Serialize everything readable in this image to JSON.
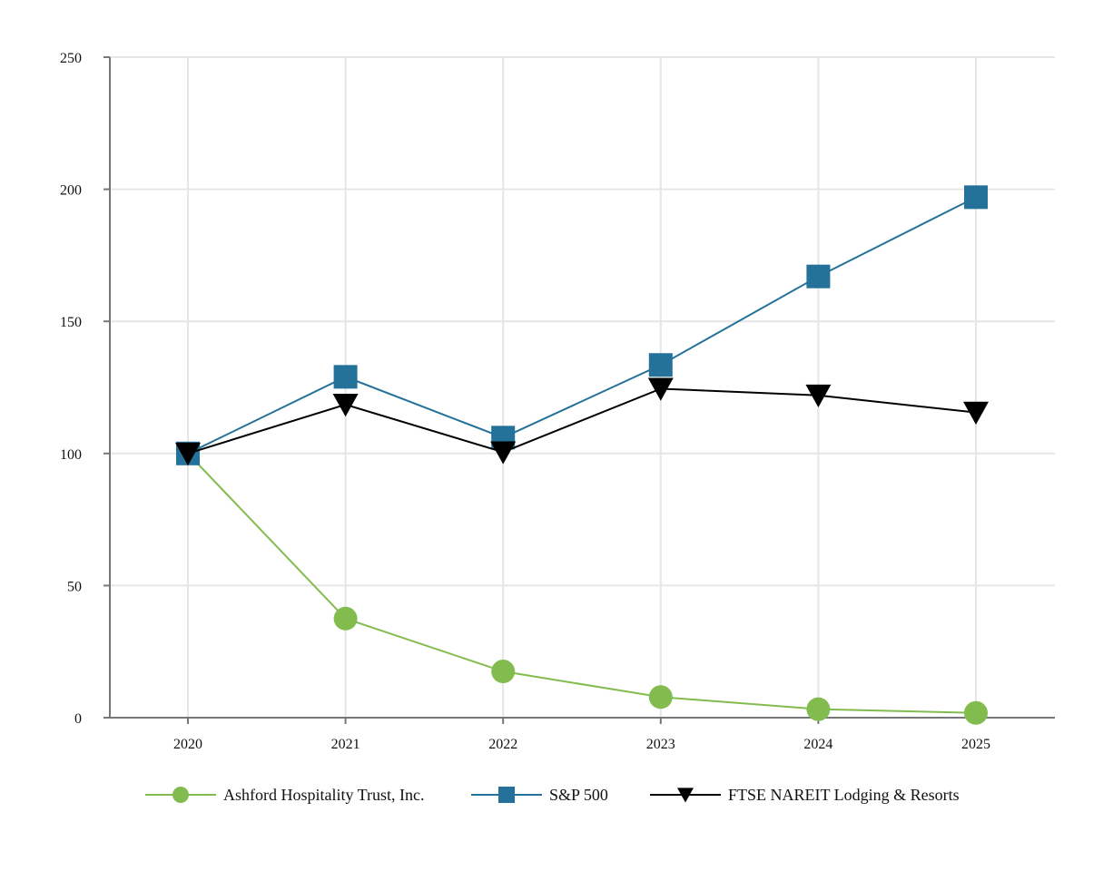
{
  "chart_data": {
    "type": "line",
    "title": "",
    "xlabel": "",
    "ylabel": "",
    "categories": [
      "2020",
      "2021",
      "2022",
      "2023",
      "2024",
      "2025"
    ],
    "ylim": [
      0,
      250
    ],
    "yticks": [
      0,
      50,
      100,
      150,
      200,
      250
    ],
    "grid": true,
    "legend": "bottom",
    "series": [
      {
        "name": "Ashford Hospitality Trust, Inc.",
        "values": [
          100,
          37.5,
          17.5,
          7.8,
          3.2,
          1.8
        ],
        "color": "#82bc4f",
        "marker": "circle"
      },
      {
        "name": "S&P 500",
        "values": [
          100,
          129,
          106,
          133.5,
          167,
          197
        ],
        "color": "#24719a",
        "marker": "square"
      },
      {
        "name": "FTSE NAREIT Lodging & Resorts",
        "values": [
          100,
          118.5,
          100.5,
          124.5,
          122,
          115.5
        ],
        "color": "#000000",
        "marker": "triangle-down"
      }
    ]
  }
}
